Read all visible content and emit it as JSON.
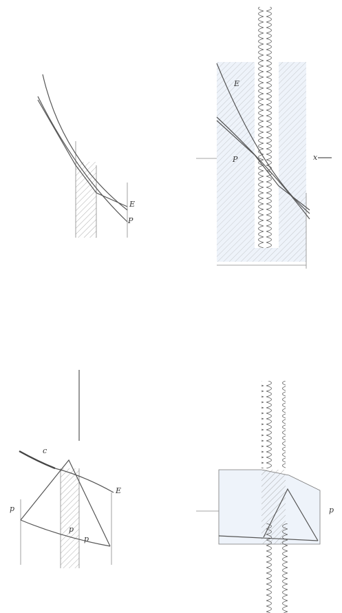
{
  "figures": [
    {
      "labels": [
        "E",
        "P"
      ]
    },
    {
      "labels": [
        "E",
        "P",
        "x"
      ]
    },
    {
      "labels": [
        "c",
        "E",
        "p",
        "p",
        "p"
      ]
    },
    {
      "labels": [
        "p"
      ]
    }
  ]
}
